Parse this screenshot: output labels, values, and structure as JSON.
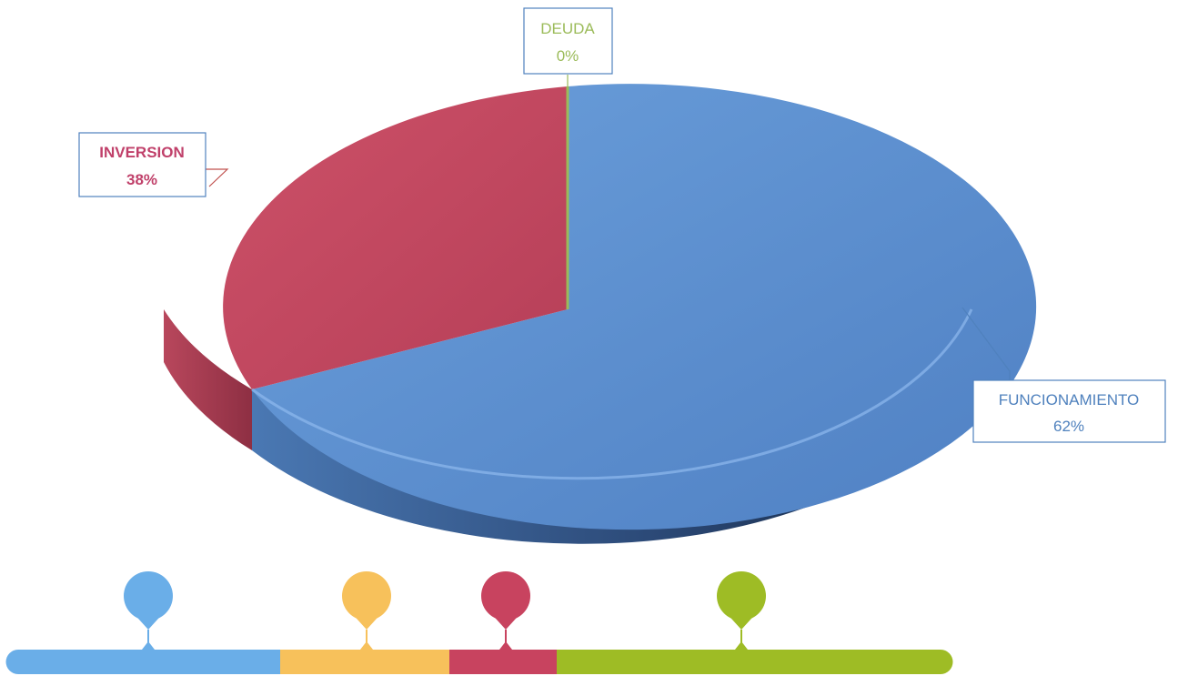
{
  "chart_data": {
    "type": "pie",
    "style": "3d",
    "slices": [
      {
        "label": "FUNCIONAMIENTO",
        "value": 62,
        "value_label": "62%",
        "color": "#4f81bd"
      },
      {
        "label": "INVERSION",
        "value": 38,
        "value_label": "38%",
        "color": "#c0504d"
      },
      {
        "label": "DEUDA",
        "value": 0,
        "value_label": "0%",
        "color": "#9bbb59"
      }
    ]
  },
  "decoration": {
    "timeline_colors": [
      "#6aaee8",
      "#f7c15b",
      "#c8435f",
      "#9ebc25"
    ]
  }
}
